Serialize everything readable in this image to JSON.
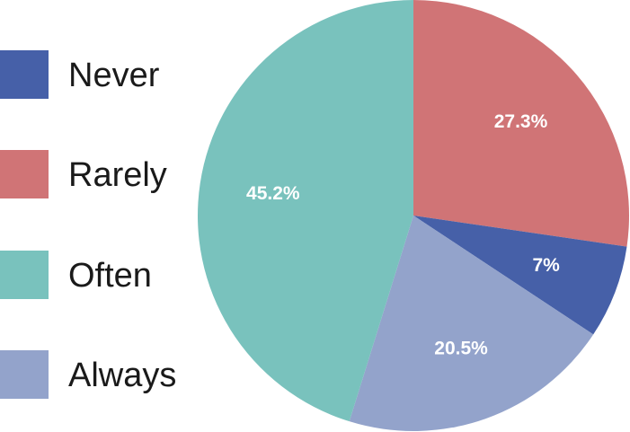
{
  "chart_data": {
    "type": "pie",
    "legend_position": "left",
    "slices": [
      {
        "name": "Never",
        "value": 7.0,
        "label": "7%",
        "color": "#4660a8"
      },
      {
        "name": "Rarely",
        "value": 27.3,
        "label": "27.3%",
        "color": "#d07476"
      },
      {
        "name": "Often",
        "value": 45.2,
        "label": "45.2%",
        "color": "#79c2bd"
      },
      {
        "name": "Always",
        "value": 20.5,
        "label": "20.5%",
        "color": "#93a3cb"
      }
    ],
    "slice_order_clockwise_from_top": [
      "Rarely",
      "Never",
      "Always",
      "Often"
    ]
  }
}
